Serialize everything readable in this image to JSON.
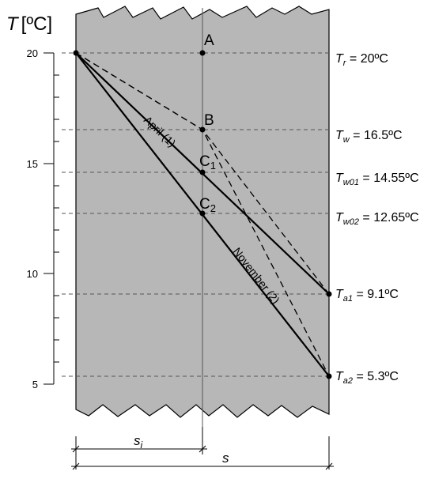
{
  "axis": {
    "title": "T",
    "unit": "[ºC]",
    "ticks": [
      {
        "label": "20",
        "value": 20
      },
      {
        "label": "15",
        "value": 15
      },
      {
        "label": "10",
        "value": 10
      },
      {
        "label": "5",
        "value": 5
      }
    ]
  },
  "temperatures": {
    "tr": {
      "symbol": "T",
      "sub": "r",
      "value_text": " = 20ºC",
      "value": 20
    },
    "tw": {
      "symbol": "T",
      "sub": "w",
      "value_text": " = 16.5ºC",
      "value": 16.5
    },
    "tw01": {
      "symbol": "T",
      "sub": "w01",
      "value_text": " = 14.55ºC",
      "value": 14.55
    },
    "tw02": {
      "symbol": "T",
      "sub": "w02",
      "value_text": " = 12.65ºC",
      "value": 12.65
    },
    "ta1": {
      "symbol": "T",
      "sub": "a1",
      "value_text": " = 9.1ºC",
      "value": 9.1
    },
    "ta2": {
      "symbol": "T",
      "sub": "a2",
      "value_text": " = 5.3ºC",
      "value": 5.3
    }
  },
  "points": {
    "a": {
      "label": "A"
    },
    "b": {
      "label": "B"
    },
    "c1": {
      "label": "C",
      "sub": "1"
    },
    "c2": {
      "label": "C",
      "sub": "2"
    }
  },
  "lines": {
    "april": {
      "label": "April (1)"
    },
    "november": {
      "label": "November (2)"
    }
  },
  "dimensions": {
    "si": {
      "symbol": "s",
      "sub": "i"
    },
    "s": {
      "symbol": "s"
    }
  },
  "colors": {
    "wall": "#b7b7b7",
    "line": "#000000",
    "dash": "#555555"
  }
}
